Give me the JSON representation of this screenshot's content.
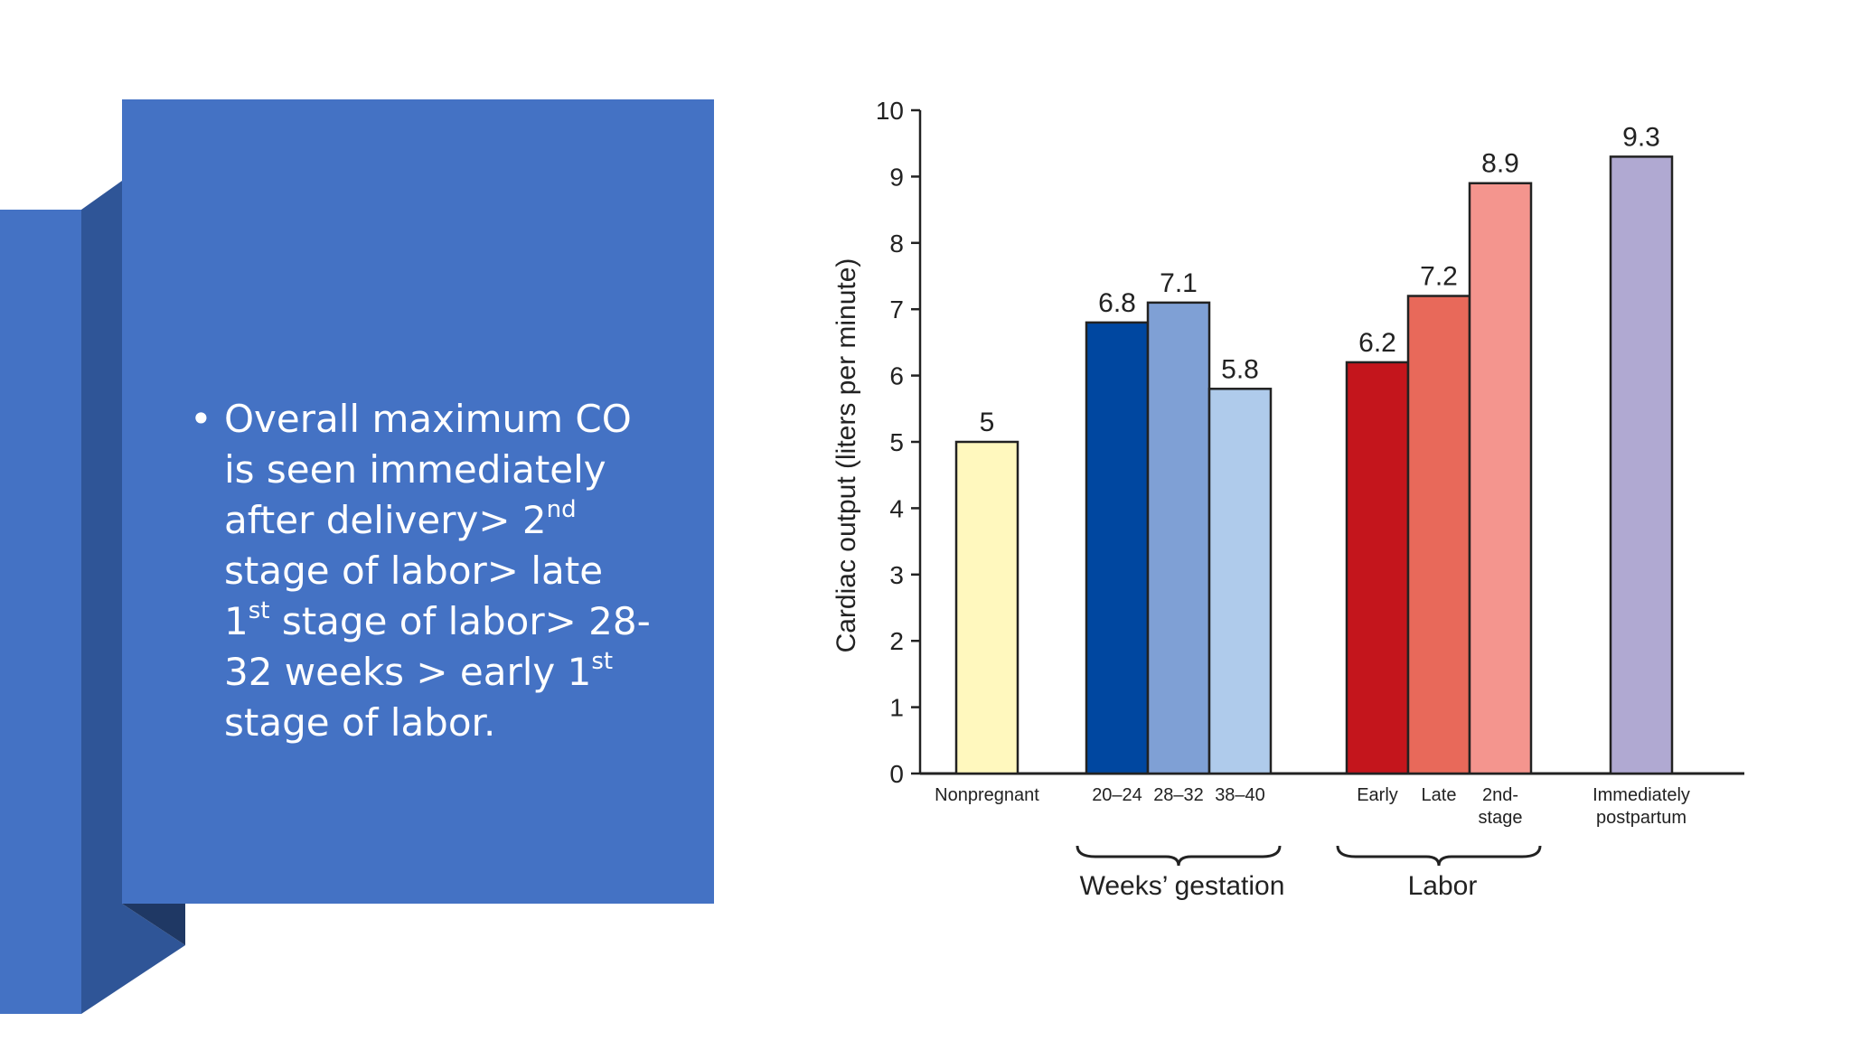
{
  "slide": {
    "bullet_symbol": "•",
    "bullet_parts": [
      {
        "text": "Overall maximum CO is seen immediately after delivery> 2"
      },
      {
        "text": "nd",
        "sup": true
      },
      {
        "text": " stage of labor> late 1"
      },
      {
        "text": "st",
        "sup": true
      },
      {
        "text": " stage of labor> 28-32 weeks > early 1"
      },
      {
        "text": "st",
        "sup": true
      },
      {
        "text": " stage of labor."
      }
    ],
    "colors": {
      "panel": "#4472c4",
      "panel_side": "#2f5597",
      "panel_shadow": "#1f3864",
      "text": "#ffffff"
    }
  },
  "chart_data": {
    "type": "bar",
    "ylabel": "Cardiac output (liters per minute)",
    "ylim": [
      0,
      10
    ],
    "yticks": [
      "0",
      "1",
      "2",
      "3",
      "4",
      "5",
      "6",
      "7",
      "8",
      "9",
      "10"
    ],
    "bars": [
      {
        "category": "Nonpregnant",
        "label_lines": [
          "Nonpregnant"
        ],
        "value": 5,
        "value_label": "5",
        "color": "#fff8be"
      },
      {
        "category": "20–24",
        "label_lines": [
          "20–24"
        ],
        "value": 6.8,
        "value_label": "6.8",
        "color": "#0047a0"
      },
      {
        "category": "28–32",
        "label_lines": [
          "28–32"
        ],
        "value": 7.1,
        "value_label": "7.1",
        "color": "#7fa0d5"
      },
      {
        "category": "38–40",
        "label_lines": [
          "38–40"
        ],
        "value": 5.8,
        "value_label": "5.8",
        "color": "#afcbeb"
      },
      {
        "category": "Early",
        "label_lines": [
          "Early"
        ],
        "value": 6.2,
        "value_label": "6.2",
        "color": "#c4151c"
      },
      {
        "category": "Late",
        "label_lines": [
          "Late"
        ],
        "value": 7.2,
        "value_label": "7.2",
        "color": "#e8695a"
      },
      {
        "category": "2nd-stage",
        "label_lines": [
          "2nd-",
          "stage"
        ],
        "value": 8.9,
        "value_label": "8.9",
        "color": "#f4958e"
      },
      {
        "category": "Immediately postpartum",
        "label_lines": [
          "Immediately",
          "postpartum"
        ],
        "value": 9.3,
        "value_label": "9.3",
        "color": "#b0a9d2"
      }
    ],
    "groups": [
      {
        "label": "Weeks’ gestation",
        "first": 1,
        "last": 3
      },
      {
        "label": "Labor",
        "first": 4,
        "last": 6
      }
    ]
  }
}
